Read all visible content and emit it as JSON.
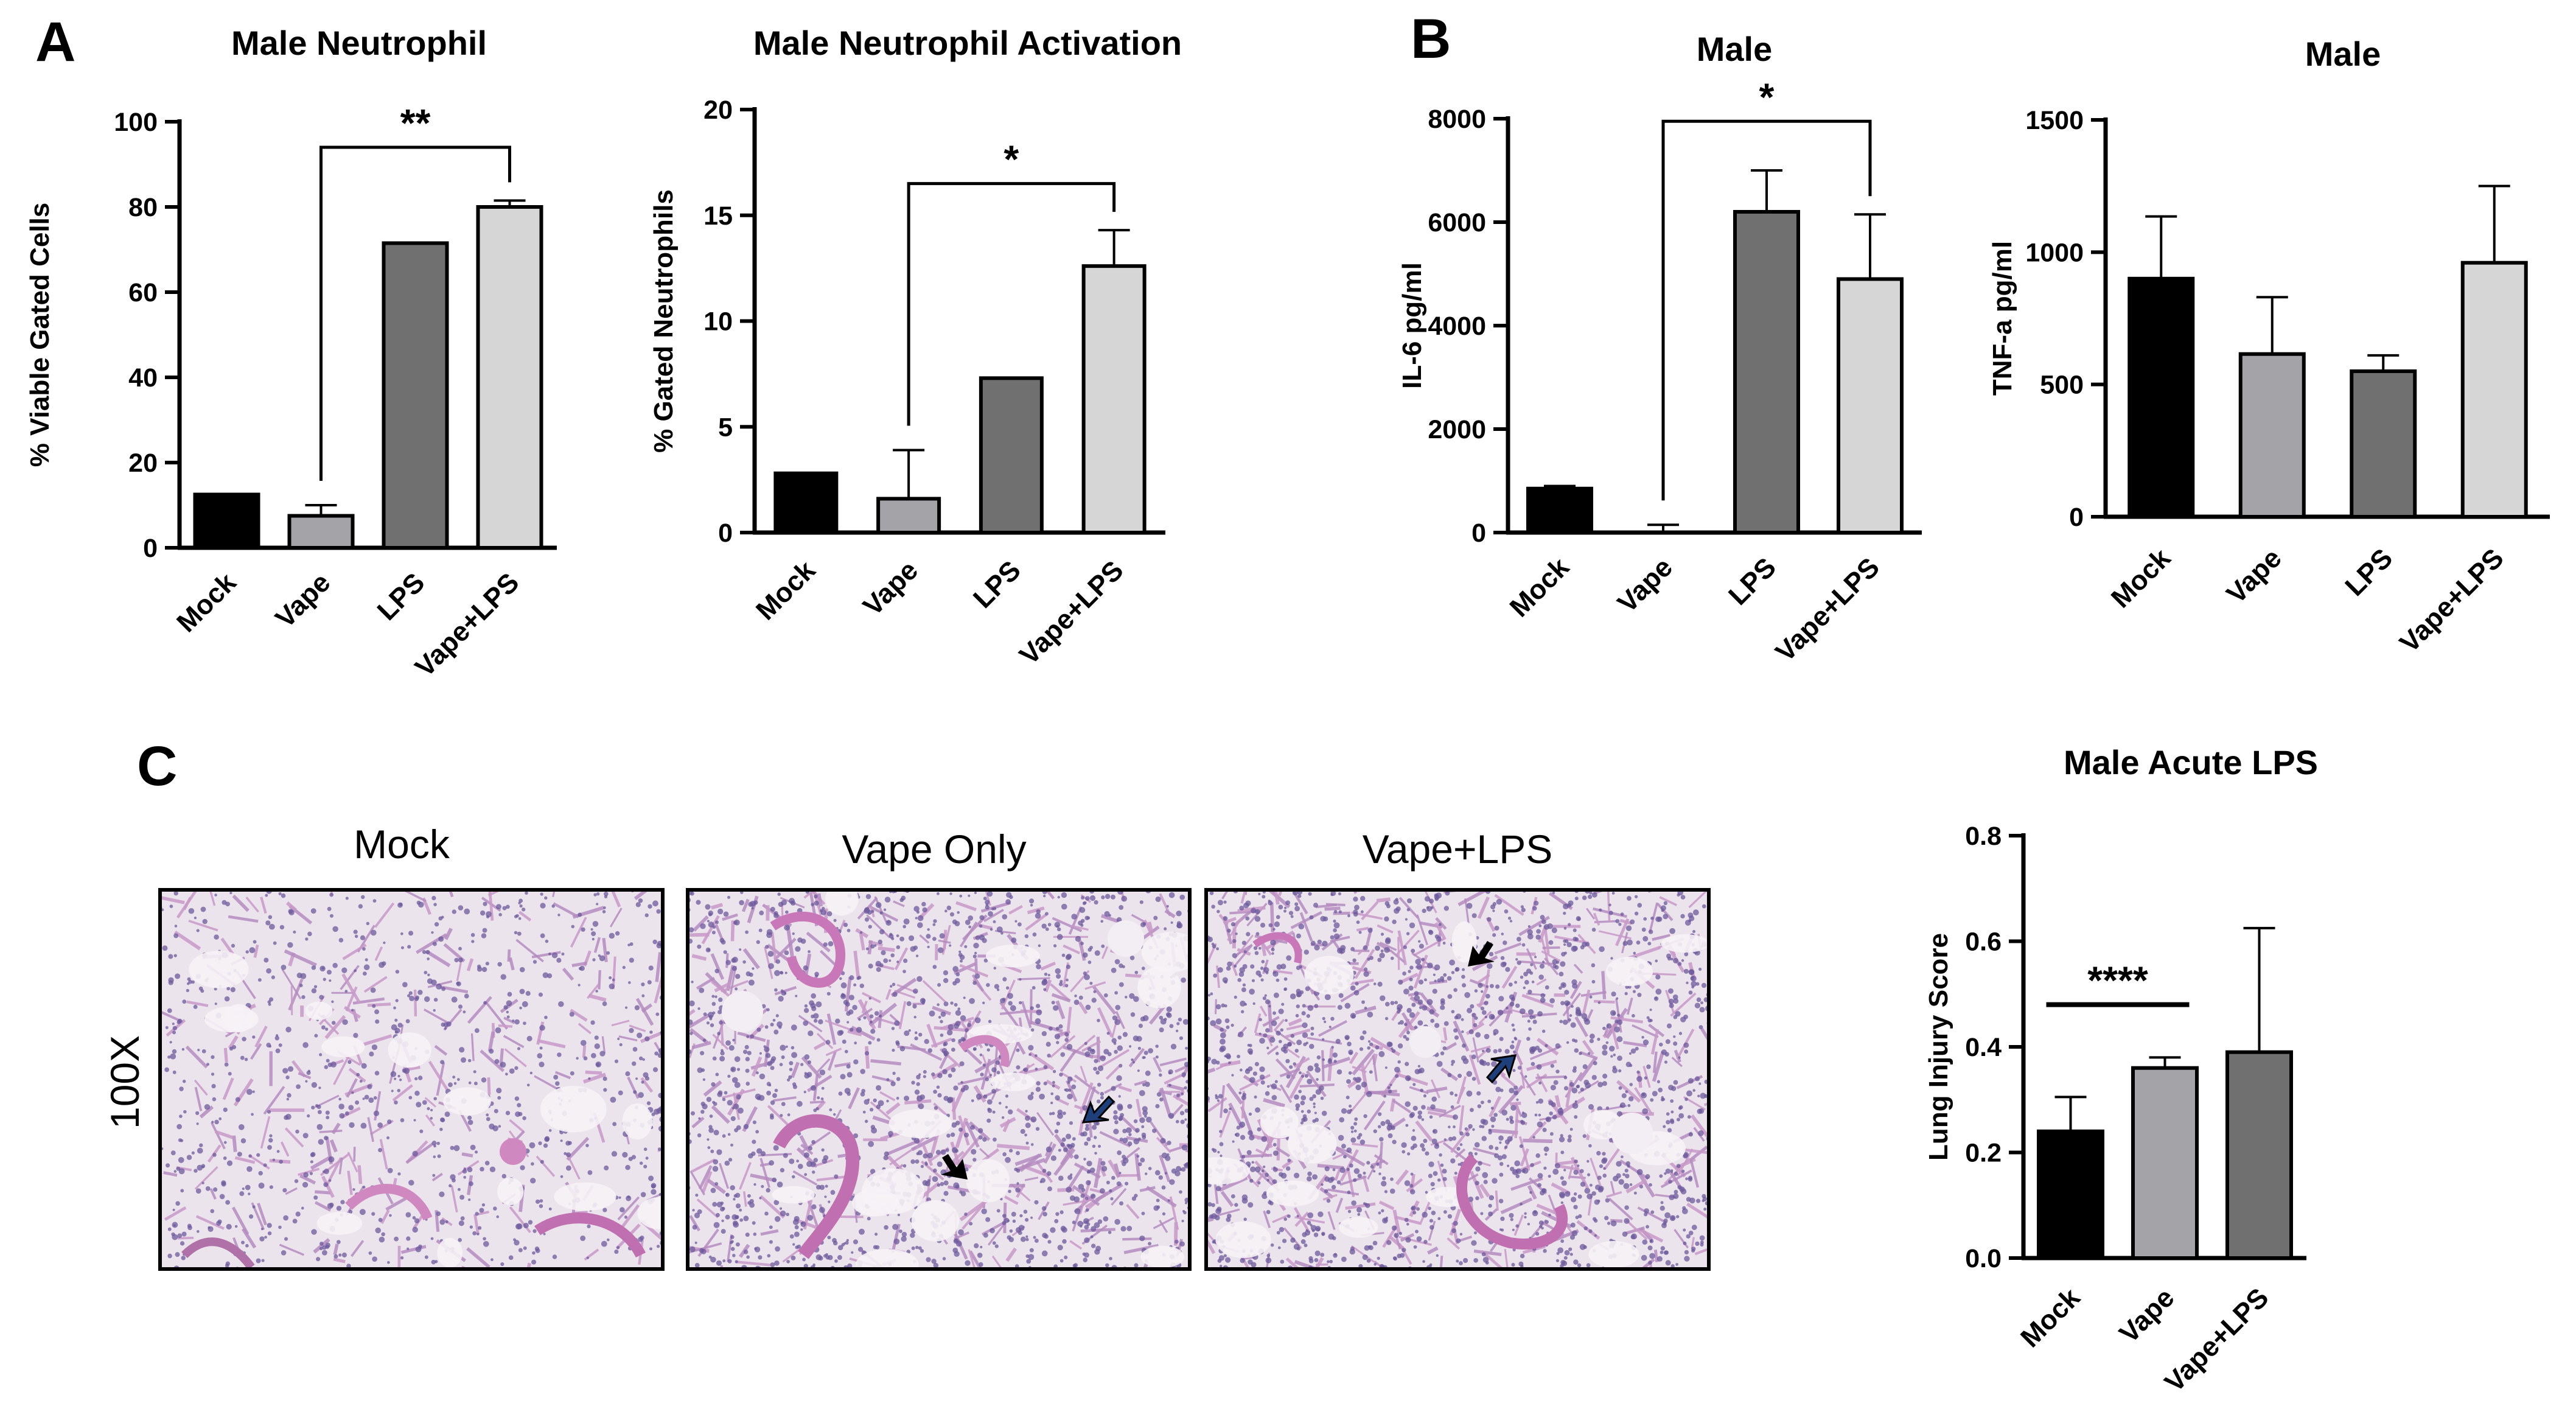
{
  "panel_labels": [
    "A",
    "B",
    "C"
  ],
  "chart_data": [
    {
      "id": "neutrophil",
      "type": "bar",
      "title": "Male Neutrophil",
      "ylabel": "% Viable Gated Cells",
      "categories": [
        "Mock",
        "Vape",
        "LPS",
        "Vape+LPS"
      ],
      "values": [
        12.5,
        7.5,
        71.5,
        80
      ],
      "errors": [
        0,
        2.5,
        0,
        1.5
      ],
      "ylim": [
        0,
        100
      ],
      "yticks": [
        0,
        20,
        40,
        60,
        80,
        100
      ],
      "significance": [
        {
          "from": 1,
          "to": 3,
          "label": "**",
          "y": 94
        }
      ]
    },
    {
      "id": "activation",
      "type": "bar",
      "title": "Male Neutrophil Activation",
      "ylabel": "% Gated Neutrophils",
      "categories": [
        "Mock",
        "Vape",
        "LPS",
        "Vape+LPS"
      ],
      "values": [
        2.8,
        1.6,
        7.3,
        12.6
      ],
      "errors": [
        0,
        2.3,
        0,
        1.7
      ],
      "ylim": [
        0,
        20
      ],
      "yticks": [
        0,
        5,
        10,
        15,
        20
      ],
      "significance": [
        {
          "from": 1,
          "to": 3,
          "label": "*",
          "y": 16.5
        }
      ]
    },
    {
      "id": "il6",
      "type": "bar",
      "title": "Male",
      "ylabel": "IL-6 pg/ml",
      "categories": [
        "Mock",
        "Vape",
        "LPS",
        "Vape+LPS"
      ],
      "values": [
        850,
        0,
        6200,
        4900
      ],
      "errors": [
        50,
        150,
        800,
        1250
      ],
      "ylim": [
        0,
        8000
      ],
      "yticks": [
        0,
        2000,
        4000,
        6000,
        8000
      ],
      "significance": [
        {
          "from": 1,
          "to": 3,
          "label": "*",
          "y": 7950
        }
      ]
    },
    {
      "id": "tnfa",
      "type": "bar",
      "title": "Male",
      "ylabel": "TNF-a pg/ml",
      "categories": [
        "Mock",
        "Vape",
        "LPS",
        "Vape+LPS"
      ],
      "values": [
        900,
        615,
        550,
        960
      ],
      "errors": [
        235,
        215,
        60,
        290
      ],
      "ylim": [
        0,
        1500
      ],
      "yticks": [
        0,
        500,
        1000,
        1500
      ],
      "significance": []
    },
    {
      "id": "lung",
      "type": "bar",
      "title": "Male Acute LPS",
      "ylabel": "Lung Injury Score",
      "categories": [
        "Mock",
        "Vape",
        "Vape+LPS"
      ],
      "values": [
        0.24,
        0.36,
        0.39
      ],
      "errors": [
        0.065,
        0.02,
        0.235
      ],
      "ylim": [
        0,
        0.8
      ],
      "yticks": [
        "0.0",
        "0.2",
        "0.4",
        "0.6",
        "0.8"
      ],
      "significance": [
        {
          "from": 0,
          "to": 1,
          "label": "****",
          "y": 0.48,
          "style": "line"
        }
      ]
    }
  ],
  "micrographs": {
    "magnification": "100X",
    "panels": [
      {
        "title": "Mock",
        "arrows": []
      },
      {
        "title": "Vape Only",
        "arrows": [
          "black",
          "blue"
        ]
      },
      {
        "title": "Vape+LPS",
        "arrows": [
          "black",
          "blue"
        ]
      }
    ]
  },
  "colors": {
    "bar_fills": [
      "#000000",
      "#a3a3a8",
      "#707070",
      "#d6d6d6"
    ],
    "tissue_bg": "#ece4ec",
    "tissue_nuclei": "#6c5a9c",
    "tissue_stroma": "#d088c0",
    "arrow_black": "#000000",
    "arrow_blue": "#1f3f7a"
  }
}
